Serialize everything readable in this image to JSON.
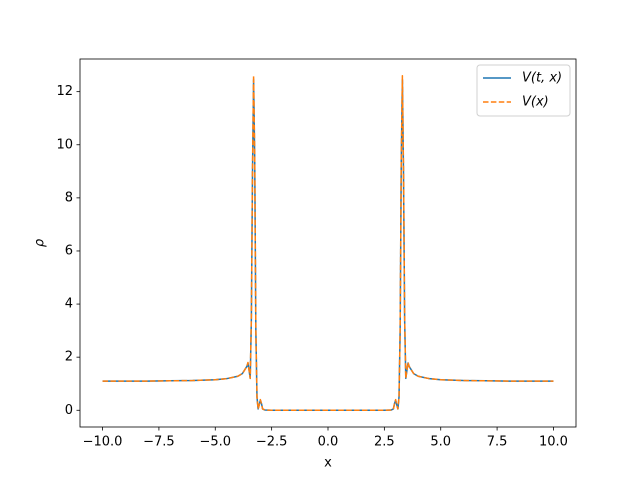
{
  "chart_data": {
    "type": "line",
    "xlabel": "x",
    "ylabel": "ρ",
    "x": [
      -10,
      -9,
      -8,
      -7,
      -6,
      -5,
      -4.5,
      -4,
      -3.8,
      -3.6,
      -3.55,
      -3.5,
      -3.45,
      -3.4,
      -3.35,
      -3.3,
      -3.25,
      -3.2,
      -3.15,
      -3.1,
      -3.05,
      -3.0,
      -2.95,
      -2.9,
      -2.8,
      -2.5,
      -2,
      -1,
      0,
      1,
      2,
      2.5,
      2.8,
      2.9,
      2.95,
      3.0,
      3.05,
      3.1,
      3.15,
      3.2,
      3.25,
      3.3,
      3.35,
      3.4,
      3.45,
      3.5,
      3.55,
      3.6,
      3.8,
      4,
      4.5,
      5,
      6,
      7,
      8,
      9,
      10
    ],
    "series": [
      {
        "name": "V(t, x)",
        "color": "#1f77b4",
        "dash": false,
        "values": [
          1.1,
          1.1,
          1.1,
          1.11,
          1.12,
          1.15,
          1.19,
          1.28,
          1.38,
          1.65,
          1.78,
          1.5,
          1.2,
          3.4,
          8.8,
          12.45,
          9.4,
          3.0,
          0.5,
          0.05,
          0.2,
          0.38,
          0.25,
          0.05,
          0.01,
          0,
          0,
          0,
          0,
          0,
          0,
          0,
          0.01,
          0.05,
          0.25,
          0.38,
          0.2,
          0.05,
          0.5,
          3.0,
          9.4,
          12.45,
          8.8,
          3.4,
          1.2,
          1.5,
          1.78,
          1.65,
          1.38,
          1.28,
          1.19,
          1.15,
          1.12,
          1.11,
          1.1,
          1.1,
          1.1
        ]
      },
      {
        "name": "V(x)",
        "color": "#ff7f0e",
        "dash": true,
        "values": [
          1.1,
          1.1,
          1.1,
          1.11,
          1.12,
          1.15,
          1.19,
          1.28,
          1.38,
          1.65,
          1.8,
          1.5,
          1.2,
          3.5,
          9.0,
          12.6,
          9.5,
          3.0,
          0.5,
          0.05,
          0.2,
          0.4,
          0.25,
          0.05,
          0.01,
          0,
          0,
          0,
          0,
          0,
          0,
          0,
          0.01,
          0.05,
          0.25,
          0.4,
          0.2,
          0.05,
          0.5,
          3.0,
          9.5,
          12.6,
          9.0,
          3.5,
          1.2,
          1.5,
          1.8,
          1.65,
          1.38,
          1.28,
          1.19,
          1.15,
          1.12,
          1.11,
          1.1,
          1.1,
          1.1
        ]
      }
    ],
    "xlim": [
      -11,
      11
    ],
    "ylim": [
      -0.63,
      13.23
    ],
    "xticks": [
      {
        "value": -10,
        "label": "−10.0"
      },
      {
        "value": -7.5,
        "label": "−7.5"
      },
      {
        "value": -5,
        "label": "−5.0"
      },
      {
        "value": -2.5,
        "label": "−2.5"
      },
      {
        "value": 0,
        "label": "0.0"
      },
      {
        "value": 2.5,
        "label": "2.5"
      },
      {
        "value": 5,
        "label": "5.0"
      },
      {
        "value": 7.5,
        "label": "7.5"
      },
      {
        "value": 10,
        "label": "10.0"
      }
    ],
    "yticks": [
      0,
      2,
      4,
      6,
      8,
      10,
      12
    ],
    "legend": "upper right",
    "grid": false
  }
}
